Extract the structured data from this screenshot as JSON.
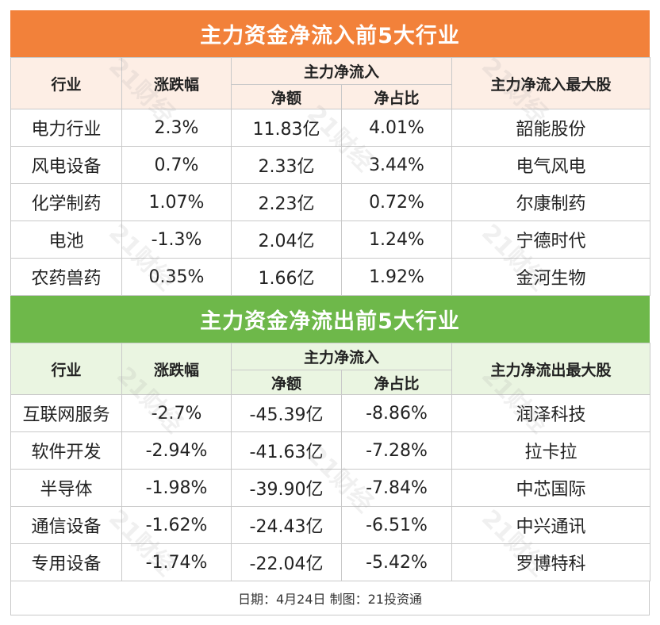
{
  "inflow": {
    "title": "主力资金净流入前5大行业",
    "headers": {
      "industry": "行业",
      "change": "涨跌幅",
      "group": "主力净流入",
      "amount": "净额",
      "ratio": "净占比",
      "top_stock": "主力净流入最大股"
    },
    "rows": [
      {
        "industry": "电力行业",
        "change": "2.3%",
        "amount": "11.83亿",
        "ratio": "4.01%",
        "stock": "韶能股份"
      },
      {
        "industry": "风电设备",
        "change": "0.7%",
        "amount": "2.33亿",
        "ratio": "3.44%",
        "stock": "电气风电"
      },
      {
        "industry": "化学制药",
        "change": "1.07%",
        "amount": "2.23亿",
        "ratio": "0.72%",
        "stock": "尔康制药"
      },
      {
        "industry": "电池",
        "change": "-1.3%",
        "amount": "2.04亿",
        "ratio": "1.24%",
        "stock": "宁德时代"
      },
      {
        "industry": "农药兽药",
        "change": "0.35%",
        "amount": "1.66亿",
        "ratio": "1.92%",
        "stock": "金河生物"
      }
    ]
  },
  "outflow": {
    "title": "主力资金净流出前5大行业",
    "headers": {
      "industry": "行业",
      "change": "涨跌幅",
      "group": "主力净流入",
      "amount": "净额",
      "ratio": "净占比",
      "top_stock": "主力净流出最大股"
    },
    "rows": [
      {
        "industry": "互联网服务",
        "change": "-2.7%",
        "amount": "-45.39亿",
        "ratio": "-8.86%",
        "stock": "润泽科技"
      },
      {
        "industry": "软件开发",
        "change": "-2.94%",
        "amount": "-41.63亿",
        "ratio": "-7.28%",
        "stock": "拉卡拉"
      },
      {
        "industry": "半导体",
        "change": "-1.98%",
        "amount": "-39.90亿",
        "ratio": "-7.84%",
        "stock": "中芯国际"
      },
      {
        "industry": "通信设备",
        "change": "-1.62%",
        "amount": "-24.43亿",
        "ratio": "-6.51%",
        "stock": "中兴通讯"
      },
      {
        "industry": "专用设备",
        "change": "-1.74%",
        "amount": "-22.04亿",
        "ratio": "-5.42%",
        "stock": "罗博特科"
      }
    ]
  },
  "footer": "日期：4月24日 制图：21投资通",
  "watermark": "21财经",
  "colors": {
    "inflow_banner": "#f2813a",
    "outflow_banner": "#6eb84a"
  }
}
